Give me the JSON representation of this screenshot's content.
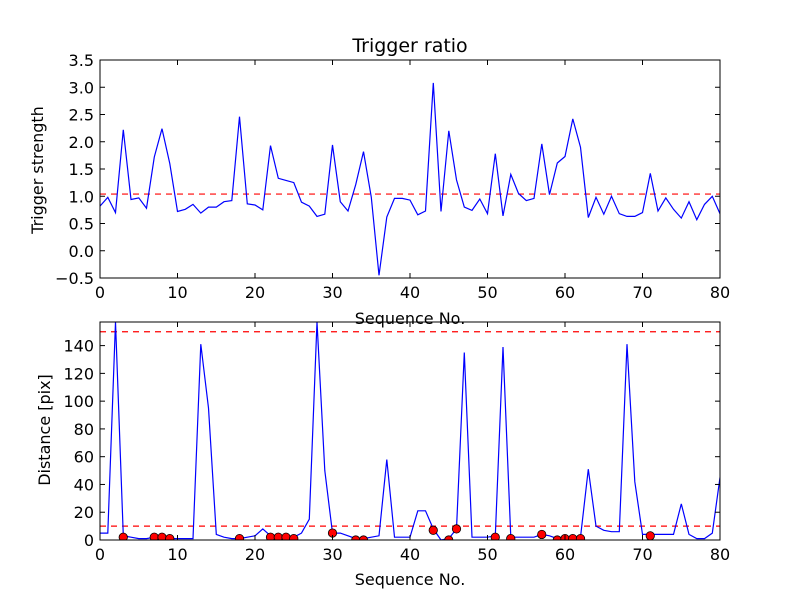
{
  "chart_data": [
    {
      "type": "line",
      "title": "Trigger ratio",
      "xlabel": "Sequence No.",
      "ylabel": "Trigger strength",
      "xlim": [
        0,
        80
      ],
      "ylim": [
        -0.5,
        3.5
      ],
      "xticks": [
        "0",
        "10",
        "20",
        "30",
        "40",
        "50",
        "60",
        "70",
        "80"
      ],
      "yticks": [
        "−0.5",
        "0.0",
        "0.5",
        "1.0",
        "1.5",
        "2.0",
        "2.5",
        "3.0",
        "3.5"
      ],
      "grid": false,
      "series": [
        {
          "color": "#0000ff",
          "x": [
            0,
            1,
            2,
            3,
            4,
            5,
            6,
            7,
            8,
            9,
            10,
            11,
            12,
            13,
            14,
            15,
            16,
            17,
            18,
            19,
            20,
            21,
            22,
            23,
            24,
            25,
            26,
            27,
            28,
            29,
            30,
            31,
            32,
            33,
            34,
            35,
            36,
            37,
            38,
            39,
            40,
            41,
            42,
            43,
            44,
            45,
            46,
            47,
            48,
            49,
            50,
            51,
            52,
            53,
            54,
            55,
            56,
            57,
            58,
            59,
            60,
            61,
            62,
            63,
            64,
            65,
            66,
            67,
            68,
            69,
            70,
            71,
            72,
            73,
            74,
            75,
            76,
            77,
            78,
            79,
            80
          ],
          "values": [
            0.82,
            0.98,
            0.7,
            2.22,
            0.94,
            0.97,
            0.78,
            1.72,
            2.24,
            1.6,
            0.72,
            0.76,
            0.85,
            0.69,
            0.8,
            0.8,
            0.9,
            0.92,
            2.46,
            0.86,
            0.84,
            0.75,
            1.93,
            1.33,
            1.29,
            1.25,
            0.89,
            0.82,
            0.63,
            0.67,
            1.94,
            0.9,
            0.73,
            1.22,
            1.82,
            0.98,
            -0.45,
            0.62,
            0.96,
            0.96,
            0.93,
            0.66,
            0.73,
            3.08,
            0.72,
            2.2,
            1.3,
            0.8,
            0.74,
            0.95,
            0.68,
            1.78,
            0.64,
            1.4,
            1.05,
            0.92,
            0.96,
            1.96,
            1.03,
            1.61,
            1.73,
            2.42,
            1.9,
            0.61,
            0.98,
            0.67,
            1.0,
            0.68,
            0.63,
            0.63,
            0.7,
            1.42,
            0.73,
            0.97,
            0.76,
            0.6,
            0.9,
            0.57,
            0.85,
            1.0,
            0.68
          ]
        }
      ],
      "reference_lines": [
        {
          "y": 1.04,
          "color": "#ff0000",
          "style": "dashed"
        }
      ]
    },
    {
      "type": "line",
      "title": "",
      "xlabel": "Sequence No.",
      "ylabel": "Distance [pix]",
      "xlim": [
        0,
        80
      ],
      "ylim": [
        0,
        157
      ],
      "xticks": [
        "0",
        "10",
        "20",
        "30",
        "40",
        "50",
        "60",
        "70",
        "80"
      ],
      "yticks": [
        "0",
        "20",
        "40",
        "60",
        "80",
        "100",
        "120",
        "140"
      ],
      "grid": false,
      "series": [
        {
          "color": "#0000ff",
          "x": [
            0,
            1,
            2,
            3,
            4,
            5,
            6,
            7,
            8,
            9,
            10,
            11,
            12,
            13,
            14,
            15,
            16,
            17,
            18,
            19,
            20,
            21,
            22,
            23,
            24,
            25,
            26,
            27,
            28,
            29,
            30,
            31,
            32,
            33,
            34,
            35,
            36,
            37,
            38,
            39,
            40,
            41,
            42,
            43,
            44,
            45,
            46,
            47,
            48,
            49,
            50,
            51,
            52,
            53,
            54,
            55,
            56,
            57,
            58,
            59,
            60,
            61,
            62,
            63,
            64,
            65,
            66,
            67,
            68,
            69,
            70,
            71,
            72,
            73,
            74,
            75,
            76,
            77,
            78,
            79,
            80
          ],
          "values": [
            5,
            5,
            157,
            3,
            2,
            1,
            1,
            2,
            2,
            1,
            1,
            1,
            1,
            141,
            95,
            4,
            2,
            1,
            1,
            2,
            3,
            8,
            3,
            3,
            3,
            2,
            5,
            15,
            157,
            50,
            5,
            5,
            3,
            1,
            1,
            2,
            3,
            58,
            2,
            2,
            2,
            21,
            21,
            8,
            0,
            1,
            8,
            135,
            2,
            2,
            2,
            3,
            139,
            2,
            2,
            2,
            2,
            4,
            3,
            1,
            2,
            2,
            2,
            51,
            10,
            7,
            6,
            6,
            141,
            42,
            4,
            4,
            4,
            4,
            4,
            26,
            4,
            1,
            1,
            5,
            45
          ]
        }
      ],
      "markers": {
        "color": "#ff0000",
        "x": [
          3,
          7,
          8,
          9,
          18,
          22,
          23,
          24,
          25,
          30,
          33,
          34,
          43,
          45,
          46,
          51,
          53,
          57,
          59,
          60,
          61,
          62,
          71
        ],
        "values": [
          2,
          2,
          2,
          1,
          1,
          2,
          2,
          2,
          1,
          5,
          0,
          0,
          7,
          0,
          8,
          2,
          1,
          4,
          0,
          1,
          1,
          1,
          3
        ]
      },
      "reference_lines": [
        {
          "y": 150,
          "color": "#ff0000",
          "style": "dashed"
        },
        {
          "y": 10,
          "color": "#ff0000",
          "style": "dashed"
        }
      ]
    }
  ]
}
